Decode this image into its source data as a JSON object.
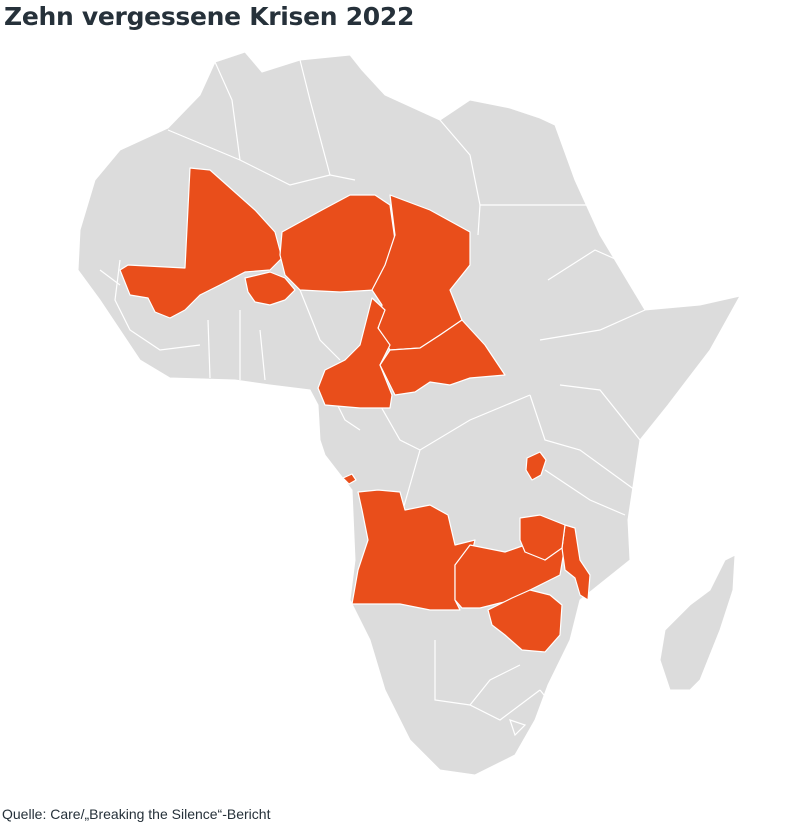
{
  "title": "Zehn vergessene Krisen 2022",
  "source": "Quelle: Care/„Breaking the Silence“-Bericht",
  "colors": {
    "highlight": "#e94e1b",
    "base": "#dcdcdc",
    "border": "#ffffff",
    "text": "#26313a"
  },
  "highlighted_countries": [
    "Mali",
    "Burkina Faso",
    "Niger",
    "Tschad",
    "Kamerun",
    "Zentralafrikanische Republik",
    "Burundi",
    "Angola",
    "Sambia",
    "Malawi",
    "Simbabwe"
  ]
}
